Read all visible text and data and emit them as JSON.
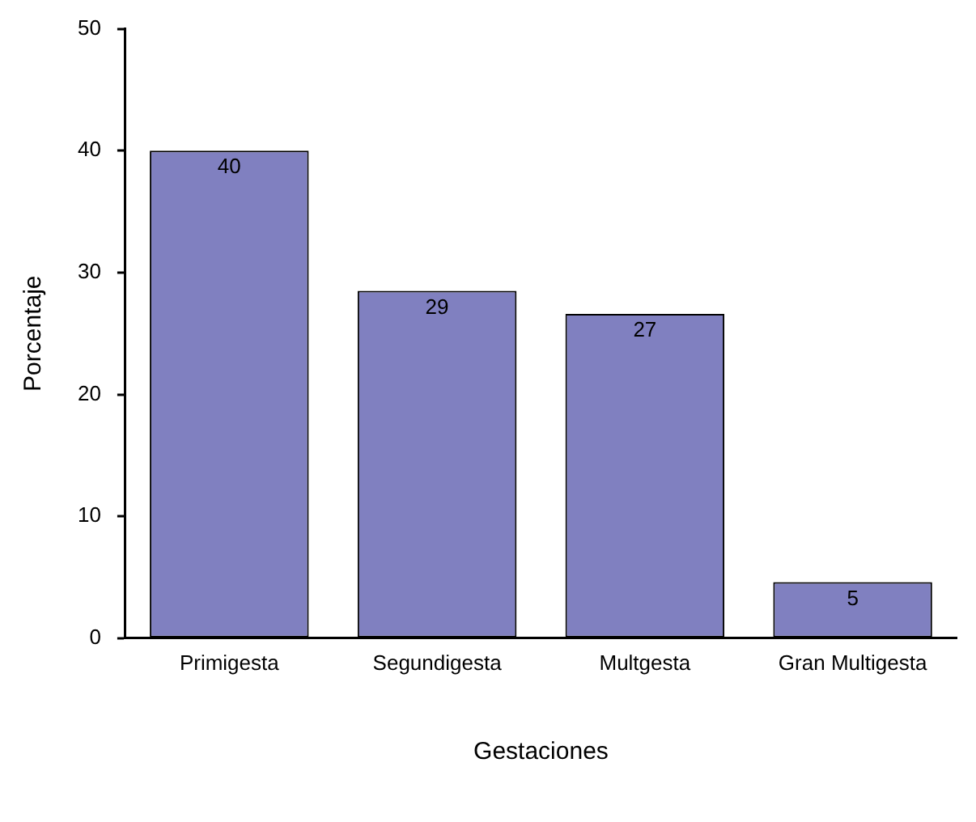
{
  "chart_data": {
    "type": "bar",
    "xlabel": "Gestaciones",
    "ylabel": "Porcentaje",
    "categories": [
      "Primigesta",
      "Segundigesta",
      "Multgesta",
      "Gran Multigesta"
    ],
    "values": [
      40,
      28.5,
      26.6,
      4.6
    ],
    "value_labels": [
      "40",
      "29",
      "27",
      "5"
    ],
    "color": "#8080c0",
    "ylim": [
      0,
      50
    ],
    "yticks": [
      0,
      10,
      20,
      30,
      40,
      50
    ],
    "grid": false,
    "legend": false
  }
}
